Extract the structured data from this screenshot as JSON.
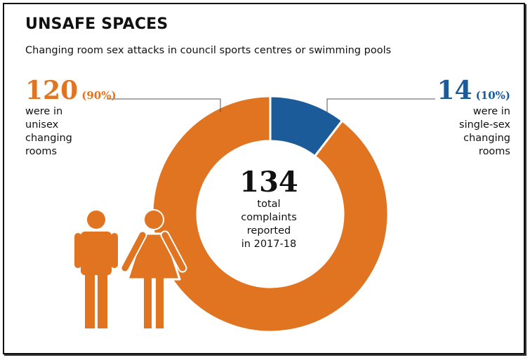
{
  "header": {
    "title": "UNSAFE SPACES",
    "subtitle": "Changing room sex attacks in council sports centres or swimming pools"
  },
  "center": {
    "total": "134",
    "lines": [
      "total",
      "complaints",
      "reported",
      "in 2017-18"
    ]
  },
  "left_label": {
    "number": "120",
    "percent": "(90%)",
    "lines": [
      "were in",
      "unisex",
      "changing",
      "rooms"
    ]
  },
  "right_label": {
    "number": "14",
    "percent": "(10%)",
    "lines": [
      "were in",
      "single-sex",
      "changing",
      "rooms"
    ]
  },
  "colors": {
    "unisex": "#e07421",
    "single_sex": "#1c5b9a",
    "figures": "#e07421"
  },
  "icons": [
    "man-icon",
    "woman-icon"
  ],
  "chart_data": {
    "type": "pie",
    "donut": true,
    "title": "UNSAFE SPACES",
    "subtitle": "Changing room sex attacks in council sports centres or swimming pools",
    "total": 134,
    "slices": [
      {
        "label": "single-sex changing rooms",
        "value": 14,
        "percent": 10,
        "color": "#1c5b9a"
      },
      {
        "label": "unisex changing rooms",
        "value": 120,
        "percent": 90,
        "color": "#e07421"
      }
    ]
  }
}
